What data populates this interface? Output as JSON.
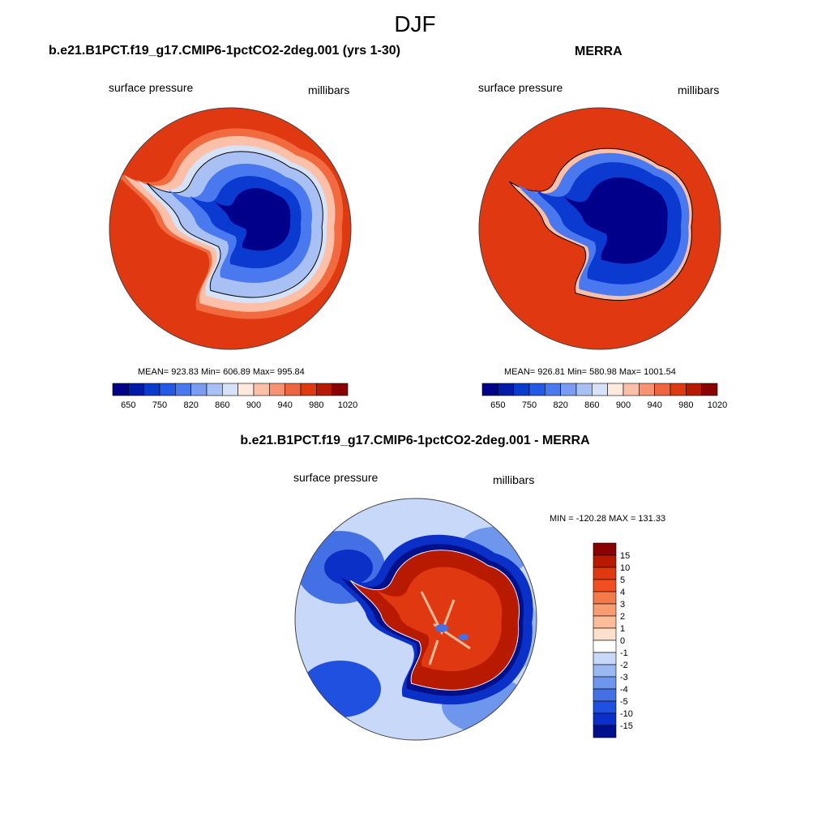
{
  "season": "DJF",
  "panels": [
    {
      "title": "b.e21.B1PCT.f19_g17.CMIP6-1pctCO2-2deg.001 (yrs 1-30)",
      "variable": "surface pressure",
      "units": "millibars",
      "stats": "MEAN= 923.83  Min= 606.89  Max= 995.84"
    },
    {
      "title": "MERRA",
      "variable": "surface pressure",
      "units": "millibars",
      "stats": "MEAN= 926.81  Min= 580.98  Max= 1001.54"
    },
    {
      "title": "b.e21.B1PCT.f19_g17.CMIP6-1pctCO2-2deg.001 - MERRA",
      "variable": "surface pressure",
      "units": "millibars",
      "stats": "MIN = -120.28 MAX = 131.33"
    }
  ],
  "chart_data": [
    {
      "type": "heatmap",
      "projection": "south-polar-stereographic",
      "title": "b.e21.B1PCT.f19_g17.CMIP6-1pctCO2-2deg.001 (yrs 1-30)",
      "variable": "surface pressure",
      "units": "millibars",
      "mean": 923.83,
      "min": 606.89,
      "max": 995.84,
      "colorbar_levels": [
        650,
        700,
        750,
        800,
        820,
        840,
        860,
        880,
        900,
        920,
        940,
        960,
        980,
        1000,
        1020
      ],
      "colorbar_tick_labels": [
        "650",
        "750",
        "820",
        "860",
        "900",
        "940",
        "980",
        "1020"
      ],
      "colorbar_colors": [
        "#00008a",
        "#001aaa",
        "#0a3ad0",
        "#2458e8",
        "#4a78ee",
        "#7a9cf2",
        "#a8c0f4",
        "#d6e2f8",
        "#ffe8dc",
        "#fcc0a8",
        "#f89272",
        "#f06440",
        "#e03810",
        "#b81800",
        "#8a0000"
      ]
    },
    {
      "type": "heatmap",
      "projection": "south-polar-stereographic",
      "title": "MERRA",
      "variable": "surface pressure",
      "units": "millibars",
      "mean": 926.81,
      "min": 580.98,
      "max": 1001.54,
      "colorbar_levels": [
        650,
        700,
        750,
        800,
        820,
        840,
        860,
        880,
        900,
        920,
        940,
        960,
        980,
        1000,
        1020
      ],
      "colorbar_tick_labels": [
        "650",
        "750",
        "820",
        "860",
        "900",
        "940",
        "980",
        "1020"
      ],
      "colorbar_colors": [
        "#00008a",
        "#001aaa",
        "#0a3ad0",
        "#2458e8",
        "#4a78ee",
        "#7a9cf2",
        "#a8c0f4",
        "#d6e2f8",
        "#ffe8dc",
        "#fcc0a8",
        "#f89272",
        "#f06440",
        "#e03810",
        "#b81800",
        "#8a0000"
      ]
    },
    {
      "type": "heatmap",
      "projection": "south-polar-stereographic",
      "title": "b.e21.B1PCT.f19_g17.CMIP6-1pctCO2-2deg.001 - MERRA",
      "variable": "surface pressure",
      "units": "millibars",
      "min": -120.28,
      "max": 131.33,
      "colorbar_orientation": "vertical",
      "colorbar_tick_labels": [
        "15",
        "10",
        "5",
        "4",
        "3",
        "2",
        "1",
        "0",
        "-1",
        "-2",
        "-3",
        "-4",
        "-5",
        "-10",
        "-15"
      ],
      "colorbar_colors": [
        "#8a0000",
        "#b81a00",
        "#e03810",
        "#f05020",
        "#f47a4a",
        "#f89c72",
        "#fcbc9a",
        "#fde0cc",
        "#ffffff",
        "#c8d8f8",
        "#9ab8f2",
        "#6e96ec",
        "#4470e6",
        "#2050e0",
        "#0a30c8",
        "#00108a"
      ]
    }
  ]
}
